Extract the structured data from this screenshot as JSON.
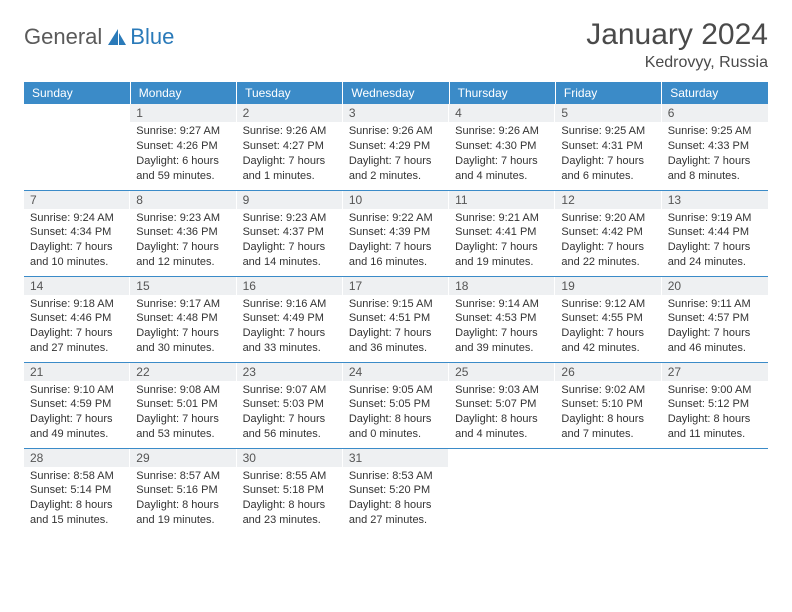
{
  "logo": {
    "general": "General",
    "blue": "Blue"
  },
  "title": "January 2024",
  "location": "Kedrovyy, Russia",
  "colors": {
    "header_bg": "#3b8bc8",
    "header_text": "#ffffff",
    "daynum_bg": "#eef0f2",
    "border": "#3b8bc8",
    "body_text": "#333333",
    "title_text": "#4a4a4a",
    "logo_gray": "#5a5a5a",
    "logo_blue": "#2a7ab9"
  },
  "weekdays": [
    "Sunday",
    "Monday",
    "Tuesday",
    "Wednesday",
    "Thursday",
    "Friday",
    "Saturday"
  ],
  "weeks": [
    [
      null,
      {
        "n": "1",
        "sr": "9:27 AM",
        "ss": "4:26 PM",
        "dl": "6 hours and 59 minutes."
      },
      {
        "n": "2",
        "sr": "9:26 AM",
        "ss": "4:27 PM",
        "dl": "7 hours and 1 minutes."
      },
      {
        "n": "3",
        "sr": "9:26 AM",
        "ss": "4:29 PM",
        "dl": "7 hours and 2 minutes."
      },
      {
        "n": "4",
        "sr": "9:26 AM",
        "ss": "4:30 PM",
        "dl": "7 hours and 4 minutes."
      },
      {
        "n": "5",
        "sr": "9:25 AM",
        "ss": "4:31 PM",
        "dl": "7 hours and 6 minutes."
      },
      {
        "n": "6",
        "sr": "9:25 AM",
        "ss": "4:33 PM",
        "dl": "7 hours and 8 minutes."
      }
    ],
    [
      {
        "n": "7",
        "sr": "9:24 AM",
        "ss": "4:34 PM",
        "dl": "7 hours and 10 minutes."
      },
      {
        "n": "8",
        "sr": "9:23 AM",
        "ss": "4:36 PM",
        "dl": "7 hours and 12 minutes."
      },
      {
        "n": "9",
        "sr": "9:23 AM",
        "ss": "4:37 PM",
        "dl": "7 hours and 14 minutes."
      },
      {
        "n": "10",
        "sr": "9:22 AM",
        "ss": "4:39 PM",
        "dl": "7 hours and 16 minutes."
      },
      {
        "n": "11",
        "sr": "9:21 AM",
        "ss": "4:41 PM",
        "dl": "7 hours and 19 minutes."
      },
      {
        "n": "12",
        "sr": "9:20 AM",
        "ss": "4:42 PM",
        "dl": "7 hours and 22 minutes."
      },
      {
        "n": "13",
        "sr": "9:19 AM",
        "ss": "4:44 PM",
        "dl": "7 hours and 24 minutes."
      }
    ],
    [
      {
        "n": "14",
        "sr": "9:18 AM",
        "ss": "4:46 PM",
        "dl": "7 hours and 27 minutes."
      },
      {
        "n": "15",
        "sr": "9:17 AM",
        "ss": "4:48 PM",
        "dl": "7 hours and 30 minutes."
      },
      {
        "n": "16",
        "sr": "9:16 AM",
        "ss": "4:49 PM",
        "dl": "7 hours and 33 minutes."
      },
      {
        "n": "17",
        "sr": "9:15 AM",
        "ss": "4:51 PM",
        "dl": "7 hours and 36 minutes."
      },
      {
        "n": "18",
        "sr": "9:14 AM",
        "ss": "4:53 PM",
        "dl": "7 hours and 39 minutes."
      },
      {
        "n": "19",
        "sr": "9:12 AM",
        "ss": "4:55 PM",
        "dl": "7 hours and 42 minutes."
      },
      {
        "n": "20",
        "sr": "9:11 AM",
        "ss": "4:57 PM",
        "dl": "7 hours and 46 minutes."
      }
    ],
    [
      {
        "n": "21",
        "sr": "9:10 AM",
        "ss": "4:59 PM",
        "dl": "7 hours and 49 minutes."
      },
      {
        "n": "22",
        "sr": "9:08 AM",
        "ss": "5:01 PM",
        "dl": "7 hours and 53 minutes."
      },
      {
        "n": "23",
        "sr": "9:07 AM",
        "ss": "5:03 PM",
        "dl": "7 hours and 56 minutes."
      },
      {
        "n": "24",
        "sr": "9:05 AM",
        "ss": "5:05 PM",
        "dl": "8 hours and 0 minutes."
      },
      {
        "n": "25",
        "sr": "9:03 AM",
        "ss": "5:07 PM",
        "dl": "8 hours and 4 minutes."
      },
      {
        "n": "26",
        "sr": "9:02 AM",
        "ss": "5:10 PM",
        "dl": "8 hours and 7 minutes."
      },
      {
        "n": "27",
        "sr": "9:00 AM",
        "ss": "5:12 PM",
        "dl": "8 hours and 11 minutes."
      }
    ],
    [
      {
        "n": "28",
        "sr": "8:58 AM",
        "ss": "5:14 PM",
        "dl": "8 hours and 15 minutes."
      },
      {
        "n": "29",
        "sr": "8:57 AM",
        "ss": "5:16 PM",
        "dl": "8 hours and 19 minutes."
      },
      {
        "n": "30",
        "sr": "8:55 AM",
        "ss": "5:18 PM",
        "dl": "8 hours and 23 minutes."
      },
      {
        "n": "31",
        "sr": "8:53 AM",
        "ss": "5:20 PM",
        "dl": "8 hours and 27 minutes."
      },
      null,
      null,
      null
    ]
  ],
  "labels": {
    "sunrise": "Sunrise:",
    "sunset": "Sunset:",
    "daylight": "Daylight:"
  }
}
